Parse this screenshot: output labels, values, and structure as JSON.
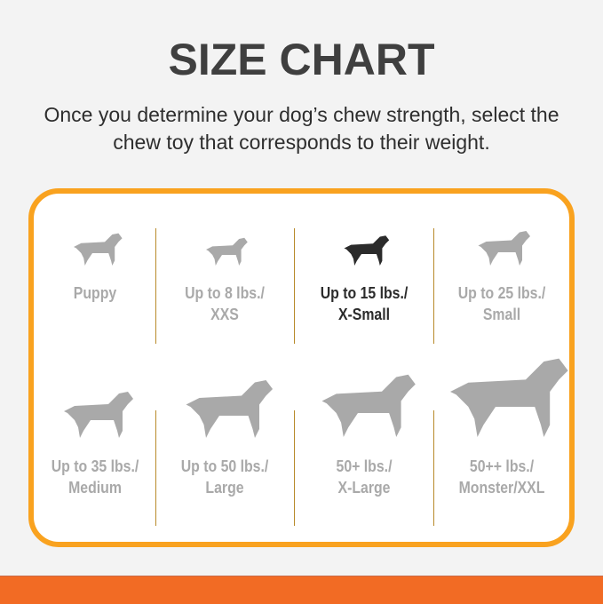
{
  "title": "SIZE CHART",
  "subtitle_line1": "Once you determine your dog’s chew strength, select the",
  "subtitle_line2": "chew toy that corresponds to their weight.",
  "colors": {
    "border": "#f9a21f",
    "bar": "#f26b24",
    "inactive": "#a9a9a9",
    "selected": "#2b2b2b"
  },
  "sizes": [
    {
      "line1": "Puppy",
      "line2": "",
      "icon": "puppy-icon",
      "selected": false
    },
    {
      "line1": "Up to 8 lbs./",
      "line2": "XXS",
      "icon": "chihuahua-icon",
      "selected": false
    },
    {
      "line1": "Up to 15 lbs./",
      "line2": "X-Small",
      "icon": "toy-terrier-icon",
      "selected": true
    },
    {
      "line1": "Up to 25 lbs./",
      "line2": "Small",
      "icon": "westie-icon",
      "selected": false
    },
    {
      "line1": "Up to 35 lbs./",
      "line2": "Medium",
      "icon": "beagle-icon",
      "selected": false
    },
    {
      "line1": "Up to 50 lbs./",
      "line2": "Large",
      "icon": "labrador-icon",
      "selected": false
    },
    {
      "line1": "50+ lbs./",
      "line2": "X-Large",
      "icon": "shepherd-icon",
      "selected": false
    },
    {
      "line1": "50++ lbs./",
      "line2": "Monster/XXL",
      "icon": "great-dane-icon",
      "selected": false
    }
  ]
}
